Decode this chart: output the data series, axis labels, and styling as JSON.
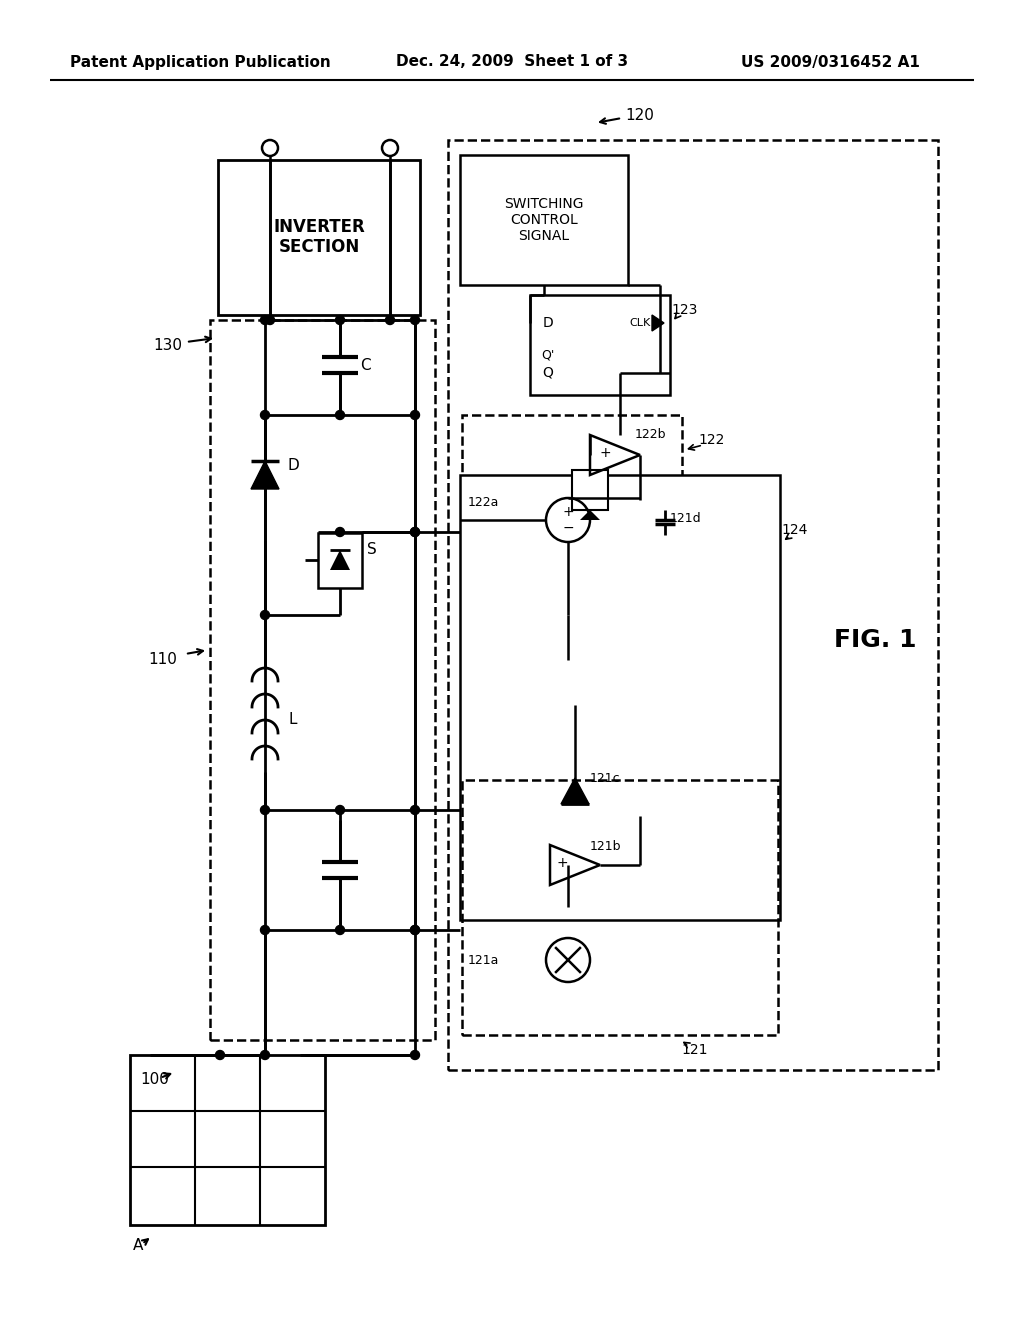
{
  "bg_color": "#ffffff",
  "header_left": "Patent Application Publication",
  "header_mid": "Dec. 24, 2009  Sheet 1 of 3",
  "header_right": "US 2009/0316452 A1",
  "fig_label": "FIG. 1",
  "labels": {
    "A": "A",
    "100": "100",
    "110": "110",
    "120": "120",
    "121": "121",
    "121a": "121a",
    "121b": "121b",
    "121c": "121c",
    "121d": "121d",
    "122": "122",
    "122a": "122a",
    "122b": "122b",
    "123": "123",
    "124": "124",
    "130": "130",
    "C": "C",
    "D": "D",
    "L": "L",
    "S": "S",
    "Q": "Q",
    "Qp": "Q'",
    "D_ff": "D",
    "CLK": "CLK",
    "inverter": "INVERTER\nSECTION",
    "switching": "SWITCHING\nCONTROL\nSIGNAL"
  }
}
